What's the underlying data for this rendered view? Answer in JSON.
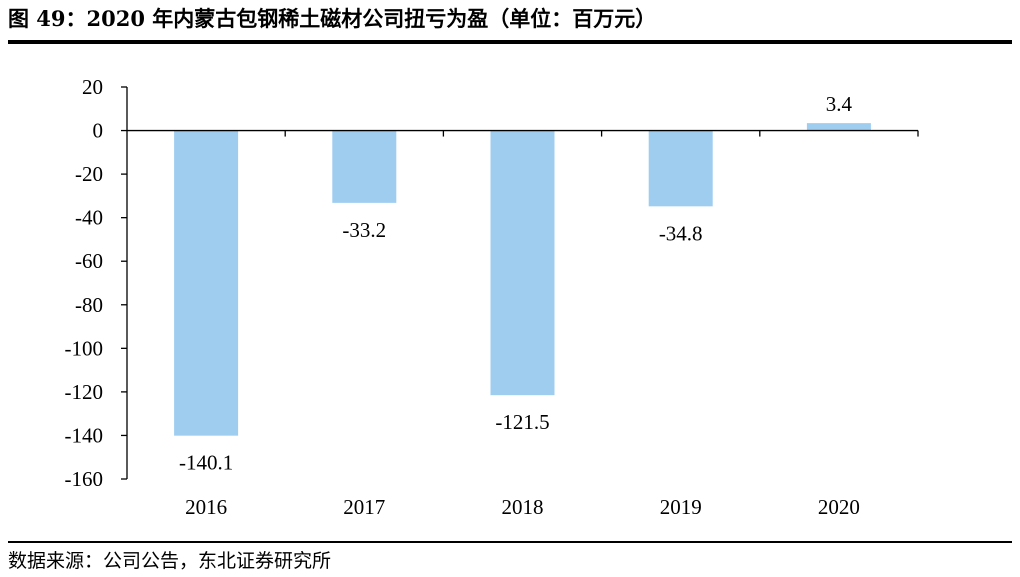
{
  "title": "图 49：2020 年内蒙古包钢稀土磁材公司扭亏为盈（单位：百万元）",
  "source": "数据来源：公司公告，东北证券研究所",
  "colors": {
    "bar": "#9ecdf0",
    "axis": "#000000"
  },
  "chart_data": {
    "type": "bar",
    "title": "2020 年内蒙古包钢稀土磁材公司扭亏为盈（单位：百万元）",
    "xlabel": "",
    "ylabel": "",
    "categories": [
      "2016",
      "2017",
      "2018",
      "2019",
      "2020"
    ],
    "values": [
      -140.1,
      -33.2,
      -121.5,
      -34.8,
      3.4
    ],
    "data_labels": [
      "-140.1",
      "-33.2",
      "-121.5",
      "-34.8",
      "3.4"
    ],
    "ylim": [
      -160,
      20
    ],
    "yticks": [
      20,
      0,
      -20,
      -40,
      -60,
      -80,
      -100,
      -120,
      -140,
      -160
    ],
    "unit": "百万元",
    "grid": false,
    "legend": "none"
  }
}
